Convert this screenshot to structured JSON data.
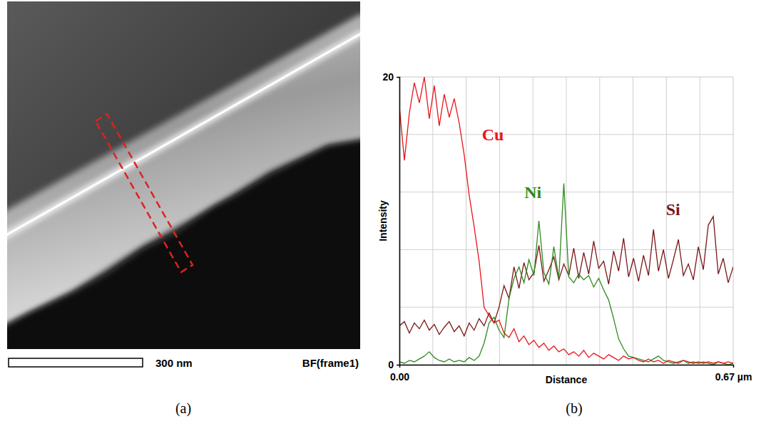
{
  "figure": {
    "panels": [
      "(a)",
      "(b)"
    ]
  },
  "image": {
    "scale_bar_label": "300 nm",
    "mode_label": "BF(frame1)"
  },
  "chart_data": {
    "type": "line",
    "x_label": "Distance",
    "y_label": "Intensity",
    "x": [
      0,
      0.01,
      0.02,
      0.03,
      0.04,
      0.05,
      0.06,
      0.07,
      0.08,
      0.09,
      0.1,
      0.11,
      0.12,
      0.13,
      0.14,
      0.15,
      0.16,
      0.17,
      0.18,
      0.19,
      0.2,
      0.21,
      0.22,
      0.23,
      0.24,
      0.25,
      0.26,
      0.27,
      0.28,
      0.29,
      0.3,
      0.31,
      0.32,
      0.33,
      0.34,
      0.35,
      0.36,
      0.37,
      0.38,
      0.39,
      0.4,
      0.41,
      0.42,
      0.43,
      0.44,
      0.45,
      0.46,
      0.47,
      0.48,
      0.49,
      0.5,
      0.51,
      0.52,
      0.53,
      0.54,
      0.55,
      0.56,
      0.57,
      0.58,
      0.59,
      0.6,
      0.61,
      0.62,
      0.63,
      0.64,
      0.65,
      0.66,
      0.67
    ],
    "series": [
      {
        "name": "Cu",
        "color": "#e8151b",
        "values": [
          17.9,
          14.2,
          17.5,
          19.6,
          18.2,
          20.0,
          17.1,
          19.4,
          16.6,
          18.8,
          17.2,
          18.5,
          16.8,
          14.6,
          11.8,
          9.6,
          7.2,
          4.0,
          3.4,
          2.9,
          3.1,
          2.2,
          1.9,
          2.5,
          1.6,
          2.0,
          1.4,
          1.7,
          1.2,
          1.5,
          1.0,
          1.3,
          0.9,
          1.1,
          0.7,
          0.9,
          0.6,
          1.0,
          0.5,
          0.8,
          0.6,
          0.4,
          0.7,
          0.5,
          0.3,
          0.6,
          0.4,
          0.5,
          0.3,
          0.2,
          0.4,
          0.2,
          0.3,
          0.1,
          0.3,
          0.2,
          0.1,
          0.3,
          0.2,
          0.1,
          0.2,
          0.1,
          0.2,
          0.1,
          0.2,
          0.1,
          0.2,
          0.1
        ]
      },
      {
        "name": "Ni",
        "color": "#2e8a1e",
        "values": [
          0.2,
          0.1,
          0.3,
          0.2,
          0.4,
          0.6,
          0.9,
          0.5,
          0.3,
          0.2,
          0.4,
          0.2,
          0.3,
          0.2,
          0.5,
          0.3,
          0.6,
          1.5,
          2.9,
          3.3,
          2.4,
          1.9,
          4.6,
          6.0,
          6.8,
          5.7,
          7.3,
          6.2,
          10.0,
          6.4,
          5.6,
          8.2,
          6.0,
          12.6,
          6.1,
          5.7,
          6.3,
          5.9,
          6.2,
          5.4,
          6.0,
          5.2,
          4.5,
          3.2,
          1.8,
          1.1,
          0.6,
          0.5,
          0.4,
          0.3,
          0.2,
          0.4,
          0.6,
          0.3,
          0.2,
          0.1,
          0.2,
          0.3,
          0.1,
          0.2,
          0.1,
          0.2,
          0.1,
          0.0,
          0.2,
          0.1,
          0.0,
          0.1
        ]
      },
      {
        "name": "Si",
        "color": "#7a1518",
        "values": [
          2.7,
          3.0,
          2.2,
          2.9,
          2.5,
          3.1,
          2.4,
          2.8,
          2.1,
          2.6,
          3.0,
          2.3,
          2.7,
          2.0,
          2.9,
          2.4,
          3.2,
          2.7,
          3.6,
          2.9,
          4.0,
          5.5,
          4.6,
          6.8,
          5.3,
          7.1,
          5.9,
          6.4,
          8.3,
          5.8,
          6.6,
          7.5,
          5.9,
          7.0,
          6.2,
          8.1,
          6.0,
          7.8,
          6.3,
          8.6,
          6.7,
          7.2,
          5.6,
          7.9,
          6.5,
          8.8,
          6.1,
          7.4,
          5.8,
          7.6,
          6.2,
          9.4,
          6.5,
          8.0,
          6.0,
          7.3,
          8.7,
          6.2,
          7.0,
          5.9,
          8.2,
          6.6,
          9.7,
          10.3,
          6.3,
          7.4,
          5.7,
          6.8
        ]
      }
    ],
    "xlim": [
      0,
      0.67
    ],
    "ylim": [
      0,
      20
    ],
    "xticks": [
      {
        "value": 0,
        "label": "0.00"
      },
      {
        "value": 0.67,
        "label": "0.67 µm"
      }
    ],
    "yticks": [
      0,
      20
    ],
    "grid": true,
    "x_gridlines": [
      0.067,
      0.134,
      0.201,
      0.268,
      0.335,
      0.402,
      0.469,
      0.536,
      0.603
    ],
    "y_gridlines": [
      4,
      8,
      12,
      16
    ]
  }
}
